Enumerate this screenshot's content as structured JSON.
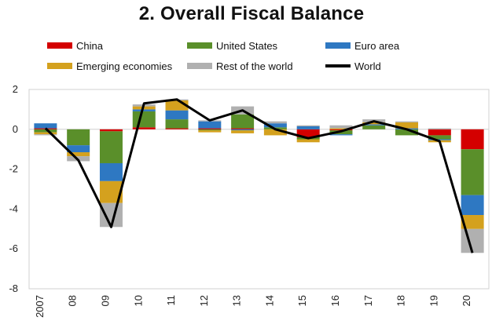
{
  "chart_data": {
    "type": "bar",
    "title": "2. Overall Fiscal Balance",
    "categories": [
      "2007",
      "08",
      "09",
      "10",
      "11",
      "12",
      "13",
      "14",
      "15",
      "16",
      "17",
      "18",
      "19",
      "20"
    ],
    "ylim": [
      -8,
      2
    ],
    "yticks": [
      2,
      0,
      -2,
      -4,
      -6,
      -8
    ],
    "stacked": true,
    "legend_position": "top",
    "grid": false,
    "series": [
      {
        "name": "China",
        "color": "#d40000",
        "values": [
          0.05,
          0.0,
          -0.1,
          0.1,
          0.05,
          0.05,
          0.05,
          0.0,
          -0.4,
          -0.05,
          0.0,
          0.0,
          -0.3,
          -1.0
        ]
      },
      {
        "name": "United States",
        "color": "#5a8f2a",
        "values": [
          -0.15,
          -0.8,
          -1.6,
          0.8,
          0.45,
          -0.05,
          0.7,
          0.1,
          -0.1,
          -0.2,
          0.2,
          -0.3,
          -0.2,
          -2.3
        ]
      },
      {
        "name": "Euro area",
        "color": "#2e78c2",
        "values": [
          0.25,
          -0.35,
          -0.9,
          0.1,
          0.45,
          0.35,
          -0.05,
          0.2,
          0.15,
          -0.05,
          0.05,
          0.05,
          -0.05,
          -1.0
        ]
      },
      {
        "name": "Emerging economies",
        "color": "#d4a11e",
        "values": [
          -0.1,
          -0.2,
          -1.1,
          0.15,
          0.5,
          -0.1,
          -0.15,
          -0.3,
          -0.15,
          0.05,
          0.1,
          0.3,
          -0.1,
          -0.7
        ]
      },
      {
        "name": "Rest of the world",
        "color": "#b0b0b0",
        "values": [
          -0.05,
          -0.25,
          -1.2,
          0.1,
          0.05,
          0.05,
          0.4,
          0.1,
          0.05,
          0.15,
          0.15,
          0.05,
          0.05,
          -1.2
        ]
      }
    ],
    "line": {
      "name": "World",
      "color": "#000000",
      "values": [
        0.05,
        -1.55,
        -4.9,
        1.3,
        1.5,
        0.45,
        0.95,
        0.0,
        -0.45,
        -0.1,
        0.4,
        0.0,
        -0.6,
        -6.2
      ]
    }
  }
}
